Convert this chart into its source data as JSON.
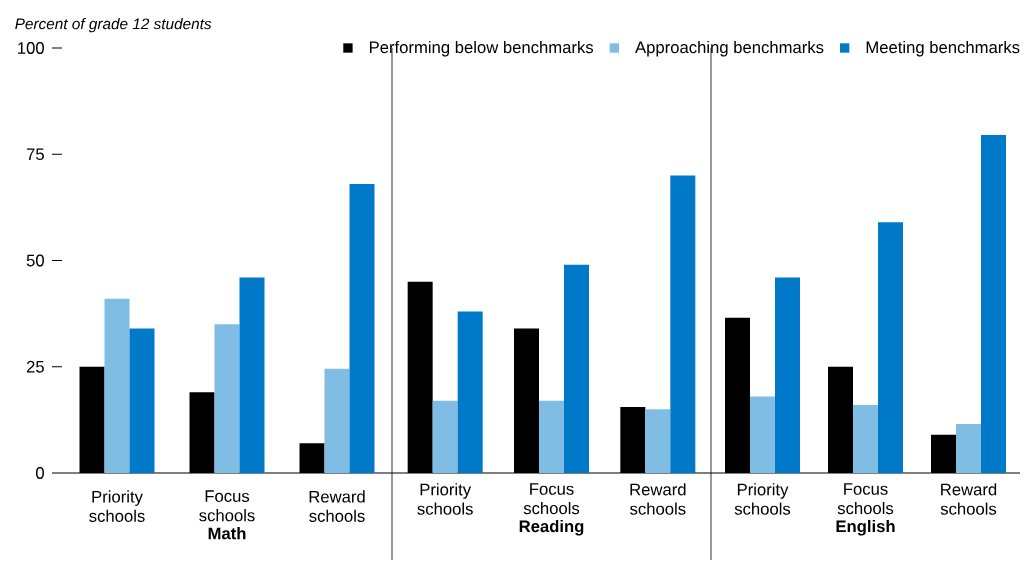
{
  "chart_data": [
    {
      "type": "bar",
      "ylabel": "Percent of grade 12 students",
      "xlabel": "Math",
      "categories": [
        "Priority schools",
        "Focus schools",
        "Reward schools"
      ],
      "ylim": [
        0,
        100
      ],
      "yticks": [
        0,
        25,
        50,
        75,
        100
      ],
      "series": [
        {
          "color": "#000000",
          "values": [
            25,
            19,
            7
          ]
        },
        {
          "color": "#7fbde4",
          "values": [
            41,
            35,
            24.5
          ]
        },
        {
          "color": "#0079c8",
          "values": [
            34,
            46,
            68
          ]
        }
      ]
    },
    {
      "type": "bar",
      "xlabel": "Reading",
      "categories": [
        "Priority schools",
        "Focus schools",
        "Reward schools"
      ],
      "ylim": [
        0,
        100
      ],
      "yticks": [
        0,
        25,
        50,
        75,
        100
      ],
      "tick_labels": "x",
      "legend": "top right",
      "series": [
        {
          "name": "Performing below benchmarks",
          "color": "#000000",
          "values": [
            45,
            34,
            15.5
          ]
        },
        {
          "name": "Approaching benchmarks",
          "color": "#7fbde4",
          "values": [
            17,
            17,
            15
          ]
        },
        {
          "name": "Meeting benchmarks",
          "color": "#0079c8",
          "values": [
            38,
            49,
            70
          ]
        }
      ]
    },
    {
      "type": "bar",
      "xlabel": "English",
      "categories": [
        "Priority schools",
        "Focus schools",
        "Reward schools"
      ],
      "ylim": [
        0,
        100
      ],
      "yticks": [
        0,
        25,
        50,
        75,
        100
      ],
      "tick_labels": "x",
      "series": [
        {
          "color": "#000000",
          "values": [
            36.5,
            25,
            9
          ]
        },
        {
          "color": "#7fbde4",
          "values": [
            18,
            16,
            11.5
          ]
        },
        {
          "color": "#0079c8",
          "values": [
            46,
            59,
            79.5
          ]
        }
      ]
    }
  ]
}
